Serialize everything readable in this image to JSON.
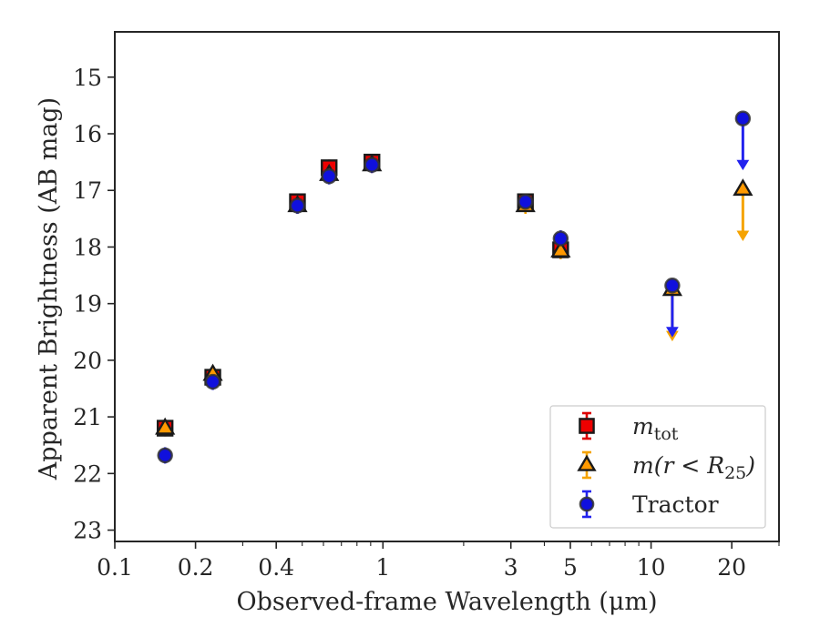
{
  "chart_data": {
    "type": "scatter",
    "xlabel": "Observed-frame Wavelength (μm)",
    "ylabel": "Apparent Brightness (AB mag)",
    "x_scale": "log",
    "xlim": [
      0.1,
      30
    ],
    "ylim": [
      23.2,
      14.2
    ],
    "y_inverted": true,
    "x_ticks": [
      0.1,
      0.2,
      0.4,
      1,
      3,
      5,
      10,
      20
    ],
    "x_tick_labels": [
      "0.1",
      "0.2",
      "0.4",
      "1",
      "3",
      "5",
      "10",
      "20"
    ],
    "y_ticks": [
      15,
      16,
      17,
      18,
      19,
      20,
      21,
      22,
      23
    ],
    "y_tick_labels": [
      "15",
      "16",
      "17",
      "18",
      "19",
      "20",
      "21",
      "22",
      "23"
    ],
    "grid": false,
    "legend_position": "bottom-right",
    "series": [
      {
        "name": "m_tot",
        "marker": "square",
        "face_color": "#ee0000",
        "error_color": "#dd0000",
        "points": [
          {
            "x": 0.154,
            "y": 21.2
          },
          {
            "x": 0.232,
            "y": 20.3
          },
          {
            "x": 0.48,
            "y": 17.2
          },
          {
            "x": 0.63,
            "y": 16.6
          },
          {
            "x": 0.91,
            "y": 16.5
          },
          {
            "x": 3.4,
            "y": 17.2
          },
          {
            "x": 4.6,
            "y": 18.05
          }
        ]
      },
      {
        "name": "m(r < R25)",
        "marker": "triangle",
        "face_color": "#ff9900",
        "error_color": "#f5a300",
        "points": [
          {
            "x": 0.154,
            "y": 21.2
          },
          {
            "x": 0.232,
            "y": 20.25
          },
          {
            "x": 0.48,
            "y": 17.27
          },
          {
            "x": 0.63,
            "y": 16.72
          },
          {
            "x": 0.91,
            "y": 16.55
          },
          {
            "x": 3.4,
            "y": 17.27
          },
          {
            "x": 4.6,
            "y": 18.07
          },
          {
            "x": 12.0,
            "y": 18.75,
            "upper_limit": true
          },
          {
            "x": 22.0,
            "y": 16.98,
            "upper_limit": true
          }
        ]
      },
      {
        "name": "Tractor",
        "marker": "circle",
        "face_color": "#1010dd",
        "error_color": "#2222ee",
        "points": [
          {
            "x": 0.154,
            "y": 21.68
          },
          {
            "x": 0.232,
            "y": 20.38
          },
          {
            "x": 0.48,
            "y": 17.27
          },
          {
            "x": 0.63,
            "y": 16.75
          },
          {
            "x": 0.91,
            "y": 16.55
          },
          {
            "x": 3.4,
            "y": 17.2
          },
          {
            "x": 4.6,
            "y": 17.85
          },
          {
            "x": 12.0,
            "y": 18.68,
            "upper_limit": true
          },
          {
            "x": 22.0,
            "y": 15.73,
            "upper_limit": true
          }
        ]
      }
    ],
    "legend": {
      "entries": [
        {
          "label_main": "m",
          "label_sub": "tot",
          "marker": "square"
        },
        {
          "label_main": "m(r < R",
          "label_sub": "25",
          "label_end": ")",
          "marker": "triangle"
        },
        {
          "label_main": "Tractor",
          "label_sub": "",
          "marker": "circle"
        }
      ]
    }
  }
}
